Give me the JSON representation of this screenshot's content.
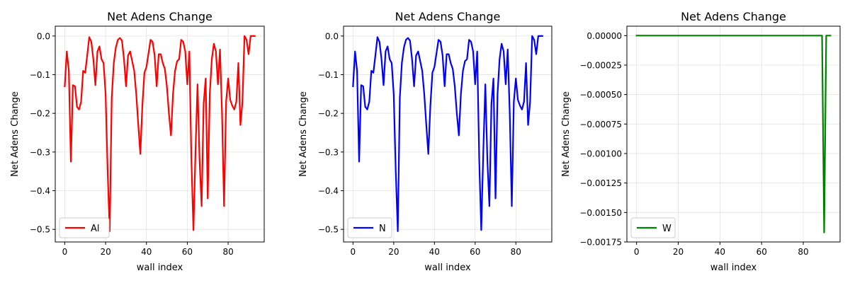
{
  "chart_data": [
    {
      "type": "line",
      "title": "Net Adens Change",
      "xlabel": "wall index",
      "ylabel": "Net Adens Change",
      "xlim": [
        -4.65,
        97.65
      ],
      "ylim": [
        -0.5326,
        0.0254
      ],
      "xticks": [
        0,
        20,
        40,
        60,
        80
      ],
      "xtick_labels": [
        "0",
        "20",
        "40",
        "60",
        "80"
      ],
      "yticks": [
        0.0,
        -0.1,
        -0.2,
        -0.3,
        -0.4,
        -0.5
      ],
      "ytick_labels": [
        "0.0",
        "−0.1",
        "−0.2",
        "−0.3",
        "−0.4",
        "−0.5"
      ],
      "grid": true,
      "legend_position": "lower-left",
      "series": [
        {
          "name": "Al",
          "color": "#ff0000",
          "x": [
            0,
            1,
            2,
            3,
            4,
            5,
            6,
            7,
            8,
            9,
            10,
            11,
            12,
            13,
            14,
            15,
            16,
            17,
            18,
            19,
            20,
            21,
            22,
            23,
            24,
            25,
            26,
            27,
            28,
            29,
            30,
            31,
            32,
            33,
            34,
            35,
            36,
            37,
            38,
            39,
            40,
            41,
            42,
            43,
            44,
            45,
            46,
            47,
            48,
            49,
            50,
            51,
            52,
            53,
            54,
            55,
            56,
            57,
            58,
            59,
            60,
            61,
            62,
            63,
            64,
            65,
            66,
            67,
            68,
            69,
            70,
            71,
            72,
            73,
            74,
            75,
            76,
            77,
            78,
            79,
            80,
            81,
            82,
            83,
            84,
            85,
            86,
            87,
            88,
            89,
            90,
            91,
            92,
            93
          ],
          "y": [
            -0.13,
            -0.04,
            -0.09,
            -0.325,
            -0.127,
            -0.13,
            -0.183,
            -0.19,
            -0.17,
            -0.09,
            -0.095,
            -0.05,
            -0.003,
            -0.015,
            -0.06,
            -0.127,
            -0.04,
            -0.027,
            -0.06,
            -0.07,
            -0.15,
            -0.35,
            -0.505,
            -0.16,
            -0.07,
            -0.03,
            -0.01,
            -0.005,
            -0.012,
            -0.06,
            -0.13,
            -0.05,
            -0.04,
            -0.065,
            -0.09,
            -0.15,
            -0.23,
            -0.305,
            -0.18,
            -0.095,
            -0.08,
            -0.045,
            -0.01,
            -0.015,
            -0.05,
            -0.13,
            -0.047,
            -0.047,
            -0.07,
            -0.085,
            -0.13,
            -0.2,
            -0.257,
            -0.15,
            -0.09,
            -0.065,
            -0.06,
            -0.01,
            -0.015,
            -0.04,
            -0.125,
            -0.04,
            -0.32,
            -0.502,
            -0.3,
            -0.125,
            -0.32,
            -0.44,
            -0.175,
            -0.11,
            -0.42,
            -0.15,
            -0.06,
            -0.02,
            -0.04,
            -0.125,
            -0.035,
            -0.2,
            -0.44,
            -0.17,
            -0.11,
            -0.165,
            -0.18,
            -0.19,
            -0.17,
            -0.07,
            -0.23,
            -0.17,
            -0.0,
            -0.01,
            -0.047,
            -0.0,
            -0.0,
            -0.0
          ]
        }
      ]
    },
    {
      "type": "line",
      "title": "Net Adens Change",
      "xlabel": "wall index",
      "ylabel": "Net Adens Change",
      "xlim": [
        -4.65,
        97.65
      ],
      "ylim": [
        -0.5326,
        0.0254
      ],
      "xticks": [
        0,
        20,
        40,
        60,
        80
      ],
      "xtick_labels": [
        "0",
        "20",
        "40",
        "60",
        "80"
      ],
      "yticks": [
        0.0,
        -0.1,
        -0.2,
        -0.3,
        -0.4,
        -0.5
      ],
      "ytick_labels": [
        "0.0",
        "−0.1",
        "−0.2",
        "−0.3",
        "−0.4",
        "−0.5"
      ],
      "grid": true,
      "legend_position": "lower-left",
      "series": [
        {
          "name": "N",
          "color": "#0000ff",
          "x": [
            0,
            1,
            2,
            3,
            4,
            5,
            6,
            7,
            8,
            9,
            10,
            11,
            12,
            13,
            14,
            15,
            16,
            17,
            18,
            19,
            20,
            21,
            22,
            23,
            24,
            25,
            26,
            27,
            28,
            29,
            30,
            31,
            32,
            33,
            34,
            35,
            36,
            37,
            38,
            39,
            40,
            41,
            42,
            43,
            44,
            45,
            46,
            47,
            48,
            49,
            50,
            51,
            52,
            53,
            54,
            55,
            56,
            57,
            58,
            59,
            60,
            61,
            62,
            63,
            64,
            65,
            66,
            67,
            68,
            69,
            70,
            71,
            72,
            73,
            74,
            75,
            76,
            77,
            78,
            79,
            80,
            81,
            82,
            83,
            84,
            85,
            86,
            87,
            88,
            89,
            90,
            91,
            92,
            93
          ],
          "y": [
            -0.13,
            -0.04,
            -0.09,
            -0.325,
            -0.127,
            -0.13,
            -0.183,
            -0.19,
            -0.17,
            -0.09,
            -0.095,
            -0.05,
            -0.003,
            -0.015,
            -0.06,
            -0.127,
            -0.04,
            -0.027,
            -0.06,
            -0.07,
            -0.15,
            -0.35,
            -0.505,
            -0.16,
            -0.07,
            -0.03,
            -0.01,
            -0.005,
            -0.012,
            -0.06,
            -0.13,
            -0.05,
            -0.04,
            -0.065,
            -0.09,
            -0.15,
            -0.23,
            -0.305,
            -0.18,
            -0.095,
            -0.08,
            -0.045,
            -0.01,
            -0.015,
            -0.05,
            -0.13,
            -0.047,
            -0.047,
            -0.07,
            -0.085,
            -0.13,
            -0.2,
            -0.257,
            -0.15,
            -0.09,
            -0.065,
            -0.06,
            -0.01,
            -0.015,
            -0.04,
            -0.125,
            -0.04,
            -0.32,
            -0.502,
            -0.3,
            -0.125,
            -0.32,
            -0.44,
            -0.175,
            -0.11,
            -0.42,
            -0.15,
            -0.06,
            -0.02,
            -0.04,
            -0.125,
            -0.035,
            -0.2,
            -0.44,
            -0.17,
            -0.11,
            -0.165,
            -0.18,
            -0.19,
            -0.17,
            -0.07,
            -0.23,
            -0.17,
            -0.0,
            -0.01,
            -0.047,
            -0.0,
            -0.0,
            -0.0
          ]
        }
      ]
    },
    {
      "type": "line",
      "title": "Net Adens Change",
      "xlabel": "wall index",
      "ylabel": "Net Adens Change",
      "xlim": [
        -4.65,
        97.65
      ],
      "ylim": [
        -0.00175,
        8e-05
      ],
      "xticks": [
        0,
        20,
        40,
        60,
        80
      ],
      "xtick_labels": [
        "0",
        "20",
        "40",
        "60",
        "80"
      ],
      "yticks": [
        0.0,
        -0.00025,
        -0.0005,
        -0.00075,
        -0.001,
        -0.00125,
        -0.0015,
        -0.00175
      ],
      "ytick_labels": [
        "0.00000",
        "−0.00025",
        "−0.00050",
        "−0.00075",
        "−0.00100",
        "−0.00125",
        "−0.00150",
        "−0.00175"
      ],
      "grid": true,
      "legend_position": "lower-left",
      "series": [
        {
          "name": "W",
          "color": "#008000",
          "x": [
            0,
            89,
            90,
            91,
            92,
            93
          ],
          "y": [
            0.0,
            0.0,
            -0.00167,
            0.0,
            0.0,
            0.0
          ]
        }
      ]
    }
  ]
}
